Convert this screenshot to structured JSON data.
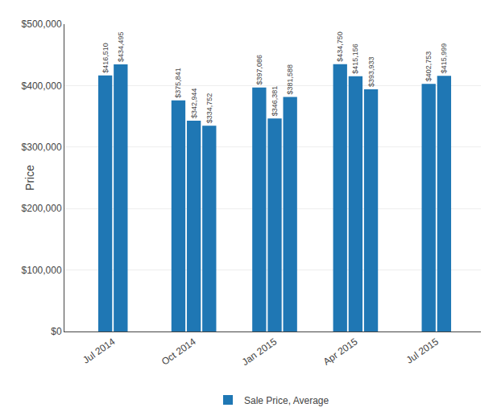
{
  "chart_data": {
    "type": "bar",
    "categories": [
      "Jul 2014",
      "Oct 2014",
      "Jan 2015",
      "Apr 2015",
      "Jul 2015"
    ],
    "series": [
      {
        "name": "Sale Price, Average",
        "values": [
          [
            416510,
            434495
          ],
          [
            375841,
            342944,
            334752
          ],
          [
            397086,
            346381,
            381588
          ],
          [
            434750,
            415156,
            393933
          ],
          [
            402753,
            415999
          ]
        ],
        "value_labels": [
          [
            "$416,510",
            "$434,495"
          ],
          [
            "$375,841",
            "$342,944",
            "$334,752"
          ],
          [
            "$397,086",
            "$346,381",
            "$381,588"
          ],
          [
            "$434,750",
            "$415,156",
            "$393,933"
          ],
          [
            "$402,753",
            "$415,999"
          ]
        ]
      }
    ],
    "ylabel": "Price",
    "ylim": [
      0,
      500000
    ],
    "yticks": [
      {
        "value": 0,
        "label": "$0"
      },
      {
        "value": 100000,
        "label": "$100,000"
      },
      {
        "value": 200000,
        "label": "$200,000"
      },
      {
        "value": 300000,
        "label": "$300,000"
      },
      {
        "value": 400000,
        "label": "$400,000"
      },
      {
        "value": 500000,
        "label": "$500,000"
      }
    ],
    "grid": true,
    "legend": "bottom",
    "data_labels": true
  }
}
